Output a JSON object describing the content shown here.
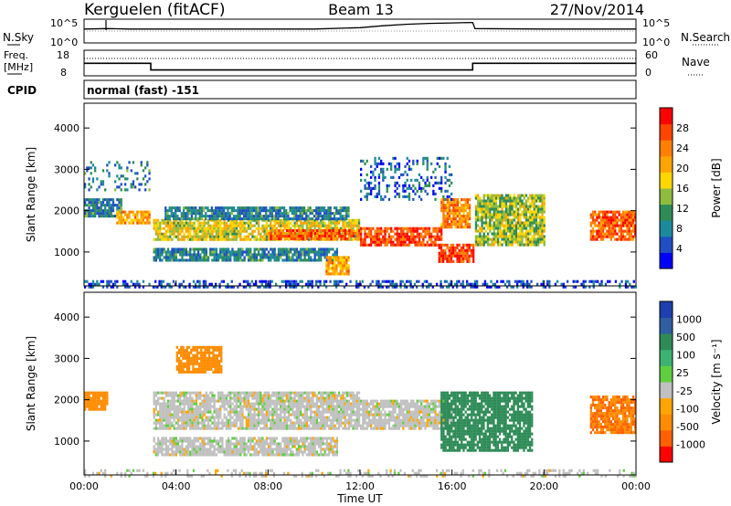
{
  "header": {
    "station": "Kerguelen (fitACF)",
    "beam": "Beam 13",
    "date": "27/Nov/2014"
  },
  "noise_panel": {
    "left_label": "N.Sky",
    "right_label": "N.Search",
    "left_ticks": [
      "10^5",
      "10^0"
    ],
    "right_ticks": [
      "10^5",
      "10^0"
    ]
  },
  "freq_panel": {
    "left_label_1": "Freq.",
    "left_label_2": "[MHz]",
    "right_label": "Nave",
    "left_ticks": [
      "18",
      "8"
    ],
    "right_ticks": [
      "60",
      "0"
    ]
  },
  "cpid": {
    "label": "CPID",
    "value": "normal (fast) -151"
  },
  "power_colorbar": {
    "label": "Power [dB]",
    "ticks": [
      "4",
      "8",
      "12",
      "16",
      "20",
      "24",
      "28"
    ],
    "colors": [
      "#0000ff",
      "#1f4fc2",
      "#1c8a9b",
      "#2e8b57",
      "#8fbc3f",
      "#ffd700",
      "#ffa500",
      "#ff7f00",
      "#ff4500",
      "#ff0000"
    ]
  },
  "velocity_colorbar": {
    "label": "Velocity [m s⁻¹]",
    "ticks": [
      "1000",
      "500",
      "100",
      "25",
      "-25",
      "-100",
      "-500",
      "-1000"
    ],
    "colors": [
      "#1f3fb0",
      "#2f5fa0",
      "#2e8b57",
      "#3cb371",
      "#5fcf3f",
      "#c0c0c0",
      "#ffa500",
      "#ff8c00",
      "#ff6000",
      "#ff0000"
    ]
  },
  "axes": {
    "ylabel": "Slant Range [km]",
    "y_ticks": [
      "1000",
      "2000",
      "3000",
      "4000"
    ],
    "xlabel": "Time UT",
    "x_ticks": [
      "00:00",
      "04:00",
      "08:00",
      "12:00",
      "16:00",
      "20:00",
      "00:00"
    ]
  },
  "chart_data": [
    {
      "type": "line",
      "name": "noise",
      "x_hours": [
        0,
        1,
        2,
        4,
        6,
        8,
        10,
        12,
        13,
        14,
        15,
        16,
        16.9,
        17,
        20,
        24
      ],
      "noise_sky_log10": [
        0.8,
        0.9,
        0.8,
        0.8,
        0.8,
        0.8,
        0.8,
        1.1,
        1.5,
        1.8,
        2.0,
        2.1,
        2.2,
        0.9,
        0.8,
        0.8
      ],
      "ylim": [
        0,
        5
      ]
    },
    {
      "type": "line",
      "name": "frequency",
      "x_hours": [
        0,
        2.9,
        2.9,
        16.9,
        16.9,
        24
      ],
      "freq_mhz": [
        12.9,
        12.9,
        10.3,
        10.3,
        12.9,
        12.9
      ],
      "nave": [
        38,
        38,
        38,
        38,
        38,
        38
      ],
      "ylim": [
        8,
        18
      ]
    },
    {
      "type": "heatmap",
      "name": "power",
      "x_hours_range": [
        0,
        24
      ],
      "ylim": [
        180,
        4600
      ],
      "features": [
        {
          "t0": 0.0,
          "t1": 24.0,
          "r0": 180,
          "r1": 320,
          "level": 4,
          "density": 0.45
        },
        {
          "t0": 0.0,
          "t1": 1.6,
          "r0": 1900,
          "r1": 2300,
          "level": 8
        },
        {
          "t0": 1.4,
          "t1": 2.8,
          "r0": 1700,
          "r1": 2000,
          "level": 20
        },
        {
          "t0": 0.0,
          "t1": 2.8,
          "r0": 2500,
          "r1": 3200,
          "level": 8,
          "density": 0.25
        },
        {
          "t0": 3.0,
          "t1": 12.0,
          "r0": 1300,
          "r1": 1800,
          "level": 16
        },
        {
          "t0": 3.5,
          "t1": 11.5,
          "r0": 1800,
          "r1": 2100,
          "level": 8
        },
        {
          "t0": 3.0,
          "t1": 11.0,
          "r0": 800,
          "r1": 1100,
          "level": 8
        },
        {
          "t0": 8.0,
          "t1": 12.0,
          "r0": 1300,
          "r1": 1550,
          "level": 24
        },
        {
          "t0": 12.0,
          "t1": 15.5,
          "r0": 1200,
          "r1": 1600,
          "level": 26
        },
        {
          "t0": 15.5,
          "t1": 16.8,
          "r0": 1600,
          "r1": 2300,
          "level": 22
        },
        {
          "t0": 15.4,
          "t1": 16.9,
          "r0": 800,
          "r1": 1200,
          "level": 26
        },
        {
          "t0": 10.5,
          "t1": 11.5,
          "r0": 500,
          "r1": 900,
          "level": 20
        },
        {
          "t0": 12.0,
          "t1": 16.0,
          "r0": 2300,
          "r1": 3300,
          "level": 6,
          "density": 0.3
        },
        {
          "t0": 17.0,
          "t1": 20.0,
          "r0": 1200,
          "r1": 2400,
          "level": 14
        },
        {
          "t0": 22.0,
          "t1": 24.0,
          "r0": 1300,
          "r1": 2000,
          "level": 24
        }
      ]
    },
    {
      "type": "heatmap",
      "name": "velocity",
      "x_hours_range": [
        0,
        24
      ],
      "ylim": [
        180,
        4600
      ],
      "features": [
        {
          "t0": 0.0,
          "t1": 24.0,
          "r0": 180,
          "r1": 320,
          "level": 0,
          "density": 0.3
        },
        {
          "t0": 0.0,
          "t1": 1.0,
          "r0": 1800,
          "r1": 2200,
          "level": -150
        },
        {
          "t0": 3.0,
          "t1": 12.0,
          "r0": 1300,
          "r1": 2200,
          "level": 0
        },
        {
          "t0": 3.0,
          "t1": 11.0,
          "r0": 700,
          "r1": 1100,
          "level": 0
        },
        {
          "t0": 12.0,
          "t1": 16.0,
          "r0": 1300,
          "r1": 2000,
          "level": 0
        },
        {
          "t0": 15.5,
          "t1": 19.5,
          "r0": 800,
          "r1": 2200,
          "level": 150
        },
        {
          "t0": 4.0,
          "t1": 6.0,
          "r0": 2700,
          "r1": 3300,
          "level": -150
        },
        {
          "t0": 22.0,
          "t1": 24.0,
          "r0": 1200,
          "r1": 2100,
          "level": -300
        }
      ]
    }
  ]
}
